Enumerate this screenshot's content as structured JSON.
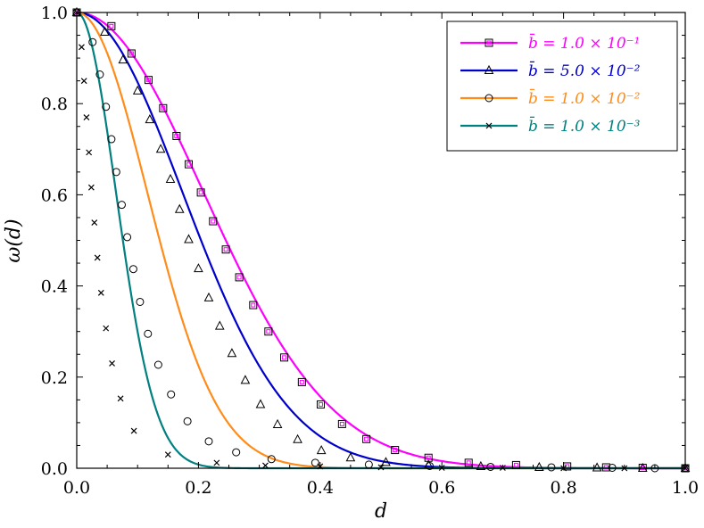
{
  "chart_data": {
    "type": "line",
    "title": "",
    "xlabel": "d",
    "ylabel": "ω(d)",
    "xlim": [
      0.0,
      1.0
    ],
    "ylim": [
      0.0,
      1.0
    ],
    "xticks": [
      "0.0",
      "0.2",
      "0.4",
      "0.6",
      "0.8",
      "1.0"
    ],
    "yticks": [
      "0.0",
      "0.2",
      "0.4",
      "0.6",
      "0.8",
      "1.0"
    ],
    "grid": false,
    "legend_position": "top-right",
    "series": [
      {
        "name": "b̄ = 1.0 × 10⁻¹",
        "color": "#ff00ff",
        "marker": "square",
        "tau": 0.0433,
        "markers_x": [
          0.0,
          0.057,
          0.09,
          0.118,
          0.142,
          0.164,
          0.184,
          0.204,
          0.224,
          0.245,
          0.267,
          0.29,
          0.315,
          0.341,
          0.37,
          0.401,
          0.436,
          0.476,
          0.523,
          0.578,
          0.644,
          0.722,
          0.806,
          0.87,
          0.93,
          1.0
        ],
        "markers_y": [
          1.0,
          0.97,
          0.91,
          0.852,
          0.79,
          0.729,
          0.667,
          0.605,
          0.542,
          0.48,
          0.419,
          0.358,
          0.3,
          0.243,
          0.189,
          0.14,
          0.097,
          0.064,
          0.04,
          0.023,
          0.012,
          0.007,
          0.004,
          0.002,
          0.001,
          0.0
        ]
      },
      {
        "name": "b̄ = 5.0 × 10⁻²",
        "color": "#0000cc",
        "marker": "triangle",
        "tau": 0.0301,
        "markers_x": [
          0.0,
          0.046,
          0.076,
          0.1,
          0.12,
          0.138,
          0.154,
          0.169,
          0.184,
          0.2,
          0.217,
          0.235,
          0.255,
          0.277,
          0.302,
          0.33,
          0.363,
          0.402,
          0.45,
          0.508,
          0.578,
          0.664,
          0.76,
          0.855,
          0.93,
          1.0
        ],
        "markers_y": [
          1.0,
          0.957,
          0.896,
          0.828,
          0.765,
          0.7,
          0.634,
          0.568,
          0.502,
          0.438,
          0.374,
          0.312,
          0.252,
          0.193,
          0.14,
          0.096,
          0.063,
          0.039,
          0.023,
          0.013,
          0.007,
          0.004,
          0.002,
          0.001,
          0.0,
          0.0
        ]
      },
      {
        "name": "b̄ = 1.0 × 10⁻²",
        "color": "#ff8c1a",
        "marker": "circle",
        "tau": 0.0134,
        "markers_x": [
          0.0,
          0.026,
          0.038,
          0.048,
          0.057,
          0.065,
          0.074,
          0.083,
          0.093,
          0.104,
          0.117,
          0.134,
          0.155,
          0.182,
          0.217,
          0.262,
          0.32,
          0.392,
          0.48,
          0.58,
          0.68,
          0.78,
          0.88,
          0.95,
          1.0
        ],
        "markers_y": [
          1.0,
          0.935,
          0.864,
          0.793,
          0.722,
          0.65,
          0.578,
          0.507,
          0.437,
          0.365,
          0.295,
          0.227,
          0.162,
          0.103,
          0.059,
          0.035,
          0.02,
          0.012,
          0.008,
          0.005,
          0.003,
          0.002,
          0.001,
          0.0,
          0.0
        ]
      },
      {
        "name": "b̄ = 1.0 × 10⁻³",
        "color": "#008080",
        "marker": "cross",
        "tau": 0.00415,
        "markers_x": [
          0.0,
          0.008,
          0.012,
          0.016,
          0.02,
          0.024,
          0.029,
          0.034,
          0.04,
          0.048,
          0.058,
          0.072,
          0.094,
          0.15,
          0.23,
          0.31,
          0.4,
          0.5,
          0.6,
          0.7,
          0.8,
          0.9,
          1.0
        ],
        "markers_y": [
          1.0,
          0.924,
          0.85,
          0.77,
          0.693,
          0.616,
          0.539,
          0.462,
          0.385,
          0.307,
          0.23,
          0.153,
          0.082,
          0.03,
          0.012,
          0.006,
          0.004,
          0.002,
          0.001,
          0.001,
          0.0,
          0.0,
          0.0
        ]
      }
    ]
  }
}
